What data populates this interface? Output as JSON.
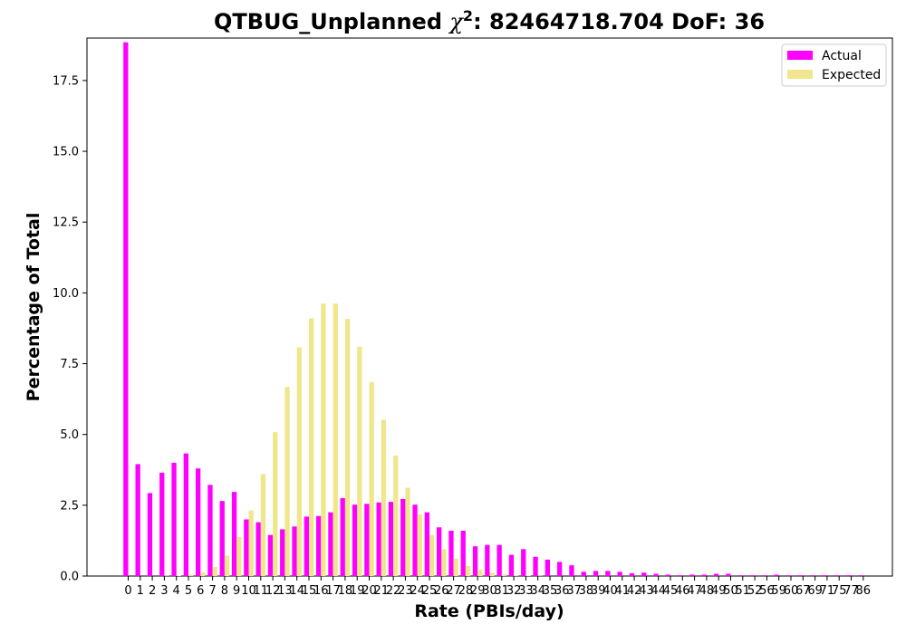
{
  "chart_data": {
    "type": "bar",
    "title_main": "QTBUG_Unplanned ",
    "title_chi": "χ",
    "title_sup": "2",
    "title_rest": ": 82464718.704 DoF: 36",
    "xlabel": "Rate (PBIs/day)",
    "ylabel": "Percentage of Total",
    "ylim": [
      0,
      19
    ],
    "yticks": [
      "0.0",
      "2.5",
      "5.0",
      "7.5",
      "10.0",
      "12.5",
      "15.0",
      "17.5"
    ],
    "ytick_values": [
      0,
      2.5,
      5.0,
      7.5,
      10.0,
      12.5,
      15.0,
      17.5
    ],
    "grid": false,
    "legend_position": "top-right",
    "categories": [
      "0",
      "1",
      "2",
      "3",
      "4",
      "5",
      "6",
      "7",
      "8",
      "9",
      "10",
      "11",
      "12",
      "13",
      "14",
      "15",
      "16",
      "17",
      "18",
      "19",
      "20",
      "21",
      "22",
      "23",
      "24",
      "25",
      "26",
      "27",
      "28",
      "29",
      "30",
      "31",
      "32",
      "33",
      "34",
      "35",
      "36",
      "37",
      "38",
      "39",
      "40",
      "41",
      "42",
      "43",
      "44",
      "45",
      "46",
      "47",
      "48",
      "49",
      "50",
      "51",
      "52",
      "56",
      "59",
      "60",
      "67",
      "69",
      "71",
      "75",
      "77",
      "86"
    ],
    "series": [
      {
        "name": "Actual",
        "color": "#ff00ff",
        "values": [
          18.85,
          3.95,
          2.93,
          3.65,
          4.0,
          4.33,
          3.8,
          3.22,
          2.65,
          2.97,
          2.0,
          1.9,
          1.45,
          1.65,
          1.75,
          2.1,
          2.12,
          2.25,
          2.75,
          2.52,
          2.55,
          2.6,
          2.62,
          2.72,
          2.52,
          2.25,
          1.72,
          1.6,
          1.6,
          1.05,
          1.1,
          1.1,
          0.75,
          0.95,
          0.68,
          0.58,
          0.5,
          0.38,
          0.15,
          0.18,
          0.18,
          0.15,
          0.1,
          0.12,
          0.08,
          0.05,
          0.03,
          0.05,
          0.05,
          0.08,
          0.08,
          0.03,
          0.03,
          0.03,
          0.05,
          0.03,
          0.03,
          0.03,
          0.03,
          0.03,
          0.03,
          0.03
        ]
      },
      {
        "name": "Expected",
        "color": "#f0e68c",
        "values": [
          0,
          0,
          0.0,
          0.01,
          0.02,
          0.05,
          0.13,
          0.32,
          0.72,
          1.38,
          2.32,
          3.6,
          5.08,
          6.68,
          8.08,
          9.1,
          9.62,
          9.62,
          9.08,
          8.1,
          6.85,
          5.52,
          4.25,
          3.12,
          2.18,
          1.45,
          0.95,
          0.62,
          0.35,
          0.22,
          0.12,
          0.06,
          0.03,
          0.02,
          0.01,
          0,
          0,
          0,
          0,
          0,
          0,
          0,
          0,
          0,
          0,
          0,
          0,
          0,
          0,
          0,
          0,
          0,
          0,
          0,
          0,
          0,
          0,
          0,
          0,
          0,
          0,
          0
        ]
      }
    ]
  }
}
